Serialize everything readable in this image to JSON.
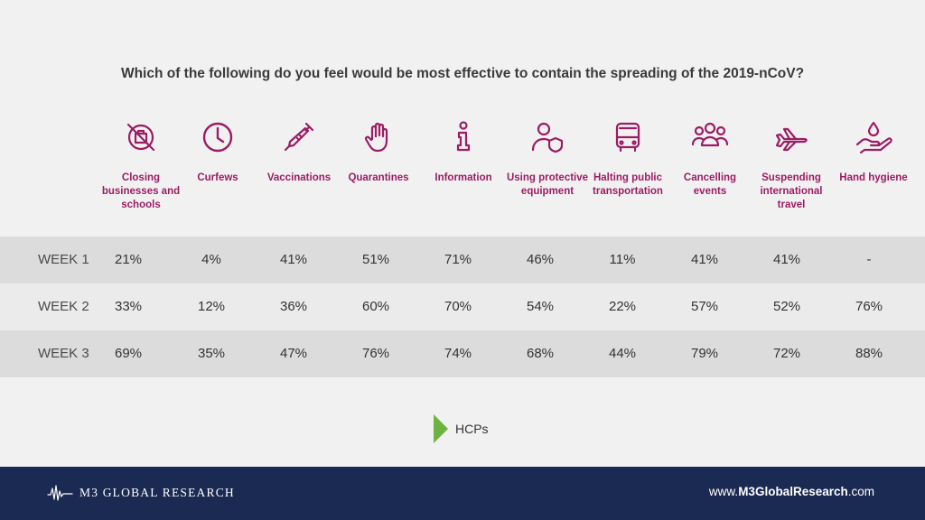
{
  "title": "Which of the following do you feel would be most effective to contain the spreading of the 2019-nCoV?",
  "colors": {
    "accent": "#9b1d64",
    "legend": "#6db33f",
    "footer": "#1b2a52"
  },
  "columns": [
    {
      "label": "Closing businesses and schools",
      "icon": "no-entry-icon"
    },
    {
      "label": "Curfews",
      "icon": "clock-icon"
    },
    {
      "label": "Vaccinations",
      "icon": "syringe-icon"
    },
    {
      "label": "Quarantines",
      "icon": "hand-stop-icon"
    },
    {
      "label": "Information",
      "icon": "info-icon"
    },
    {
      "label": "Using protective equipment",
      "icon": "user-shield-icon"
    },
    {
      "label": "Halting public transportation",
      "icon": "bus-icon"
    },
    {
      "label": "Cancelling events",
      "icon": "group-icon"
    },
    {
      "label": "Suspending international travel",
      "icon": "airplane-icon"
    },
    {
      "label": "Hand hygiene",
      "icon": "hand-drop-icon"
    }
  ],
  "rows": [
    {
      "label": "WEEK 1",
      "values": [
        "21%",
        "4%",
        "41%",
        "51%",
        "71%",
        "46%",
        "11%",
        "41%",
        "41%",
        "-"
      ]
    },
    {
      "label": "WEEK 2",
      "values": [
        "33%",
        "12%",
        "36%",
        "60%",
        "70%",
        "54%",
        "22%",
        "57%",
        "52%",
        "76%"
      ]
    },
    {
      "label": "WEEK 3",
      "values": [
        "69%",
        "35%",
        "47%",
        "76%",
        "74%",
        "68%",
        "44%",
        "79%",
        "72%",
        "88%"
      ]
    }
  ],
  "legend": {
    "label": "HCPs"
  },
  "footer": {
    "brand": "M3 GLOBAL RESEARCH",
    "url_prefix": "www.",
    "url_bold": "M3GlobalResearch",
    "url_suffix": ".com"
  }
}
